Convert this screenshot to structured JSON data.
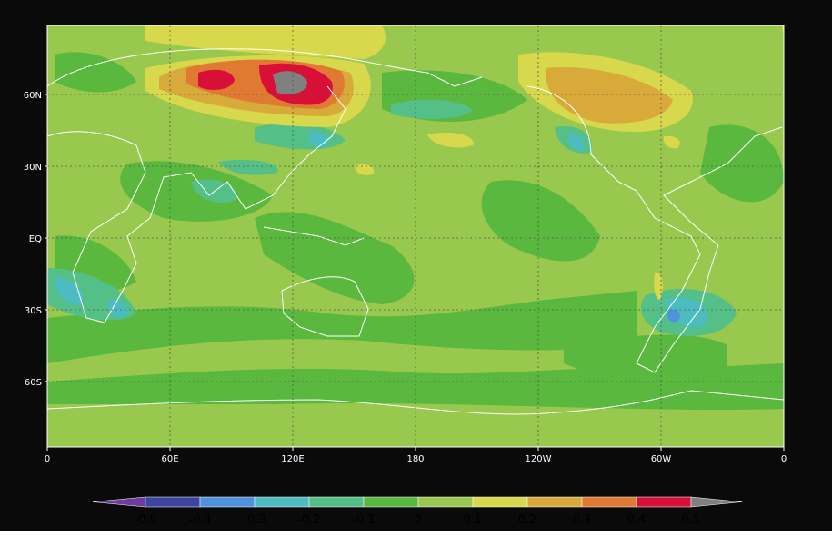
{
  "map": {
    "lat_labels": [
      "60N",
      "30N",
      "EQ",
      "30S",
      "60S"
    ],
    "lon_labels": [
      "0",
      "60E",
      "120E",
      "180",
      "120W",
      "60W",
      "0"
    ],
    "colorbar": {
      "levels": [
        -0.5,
        -0.4,
        -0.3,
        -0.2,
        -0.1,
        0,
        0.1,
        0.2,
        0.3,
        0.4,
        0.5
      ],
      "colors": [
        "#6c3c9e",
        "#3c46a0",
        "#4f92de",
        "#4cbcc0",
        "#54c088",
        "#5ab83e",
        "#98c84e",
        "#d8d84c",
        "#d8aa3a",
        "#e07a32",
        "#d81038",
        "#808080"
      ]
    }
  }
}
